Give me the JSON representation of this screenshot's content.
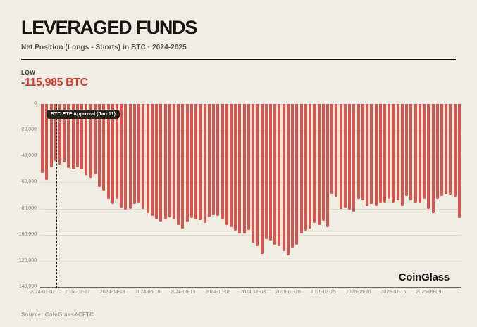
{
  "header": {
    "title": "LEVERAGED FUNDS",
    "subtitle": "Net Position (Longs - Shorts) in BTC · 2024-2025"
  },
  "stat": {
    "label": "LOW",
    "value": "-115,985 BTC"
  },
  "chart": {
    "watermark": "CoinGlass"
  },
  "footer": {
    "source": "Source: CoinGlass&CFTC"
  },
  "colors": {
    "background": "#f0ede4",
    "bar": "#d6564d",
    "low_accent": "#d8382c",
    "annotation_chip": "#26231e",
    "gridline": "#ddd9cc",
    "axis_text": "#8b877c",
    "ink": "#16140f"
  },
  "chart_data": {
    "type": "bar",
    "title": "Leveraged Funds Net Position (Longs - Shorts) in BTC, 2024-2025",
    "xlabel": "",
    "ylabel": "Net Position (BTC)",
    "ylim": [
      -140000,
      0
    ],
    "grid": true,
    "legend_position": "none",
    "low": -115985,
    "low_date": "2025-01-28",
    "y_ticks": [
      0,
      -20000,
      -40000,
      -60000,
      -80000,
      -100000,
      -120000,
      -140000
    ],
    "y_tick_labels": [
      "0",
      "-20,000",
      "-40,000",
      "-60,000",
      "-80,000",
      "-100,000",
      "-120,000",
      "-140,000"
    ],
    "x_tick_every": 8,
    "x_tick_labels": [
      "2024-01-02",
      "2024-02-27",
      "2024-04-23",
      "2024-06-18",
      "2024-08-13",
      "2024-10-08",
      "2024-12-03",
      "2025-01-28",
      "2025-03-25",
      "2025-05-20",
      "2025-07-15",
      "2025-09-09"
    ],
    "annotation": {
      "text": "BTC ETF Approval (Jan 11)",
      "x_frac": 0.0385
    },
    "x": [
      "2024-01-02",
      "2024-01-09",
      "2024-01-16",
      "2024-01-23",
      "2024-01-30",
      "2024-02-06",
      "2024-02-13",
      "2024-02-20",
      "2024-02-27",
      "2024-03-05",
      "2024-03-12",
      "2024-03-19",
      "2024-03-26",
      "2024-04-02",
      "2024-04-09",
      "2024-04-16",
      "2024-04-23",
      "2024-04-30",
      "2024-05-07",
      "2024-05-14",
      "2024-05-21",
      "2024-05-28",
      "2024-06-04",
      "2024-06-11",
      "2024-06-18",
      "2024-06-25",
      "2024-07-02",
      "2024-07-09",
      "2024-07-16",
      "2024-07-23",
      "2024-07-30",
      "2024-08-06",
      "2024-08-13",
      "2024-08-20",
      "2024-08-27",
      "2024-09-03",
      "2024-09-10",
      "2024-09-17",
      "2024-09-24",
      "2024-10-01",
      "2024-10-08",
      "2024-10-15",
      "2024-10-22",
      "2024-10-29",
      "2024-11-05",
      "2024-11-12",
      "2024-11-19",
      "2024-11-26",
      "2024-12-03",
      "2024-12-10",
      "2024-12-17",
      "2024-12-24",
      "2024-12-31",
      "2025-01-07",
      "2025-01-14",
      "2025-01-21",
      "2025-01-28",
      "2025-02-04",
      "2025-02-11",
      "2025-02-18",
      "2025-02-25",
      "2025-03-04",
      "2025-03-11",
      "2025-03-18",
      "2025-03-25",
      "2025-04-01",
      "2025-04-08",
      "2025-04-15",
      "2025-04-22",
      "2025-04-29",
      "2025-05-06",
      "2025-05-13",
      "2025-05-20",
      "2025-05-27",
      "2025-06-03",
      "2025-06-10",
      "2025-06-17",
      "2025-06-24",
      "2025-07-01",
      "2025-07-08",
      "2025-07-15",
      "2025-07-22",
      "2025-07-29",
      "2025-08-05",
      "2025-08-12",
      "2025-08-19",
      "2025-08-26",
      "2025-09-02",
      "2025-09-09",
      "2025-09-16",
      "2025-09-23",
      "2025-09-30",
      "2025-10-07",
      "2025-10-14",
      "2025-10-21",
      "2025-10-28"
    ],
    "values": [
      -52600,
      -58000,
      -48300,
      -43400,
      -46100,
      -44500,
      -48800,
      -49900,
      -48300,
      -49900,
      -54200,
      -56300,
      -53600,
      -63300,
      -66000,
      -72900,
      -76700,
      -72400,
      -79400,
      -81000,
      -80400,
      -76700,
      -75100,
      -80400,
      -83700,
      -85800,
      -88500,
      -90000,
      -88500,
      -86400,
      -88500,
      -92800,
      -95500,
      -90000,
      -87400,
      -88500,
      -89000,
      -91100,
      -86400,
      -84800,
      -85800,
      -88500,
      -92800,
      -94400,
      -97100,
      -99200,
      -99200,
      -96500,
      -106200,
      -108900,
      -114500,
      -103500,
      -104600,
      -107800,
      -108900,
      -112600,
      -115985,
      -110000,
      -107800,
      -99200,
      -97100,
      -95500,
      -91200,
      -92800,
      -89100,
      -94400,
      -68700,
      -71300,
      -80400,
      -79400,
      -81000,
      -82100,
      -72400,
      -74000,
      -78300,
      -76700,
      -77800,
      -75100,
      -75600,
      -72900,
      -75100,
      -74000,
      -77800,
      -70300,
      -74000,
      -75100,
      -75600,
      -72900,
      -80400,
      -83700,
      -72400,
      -70300,
      -68700,
      -69700,
      -71300,
      -87400
    ]
  }
}
